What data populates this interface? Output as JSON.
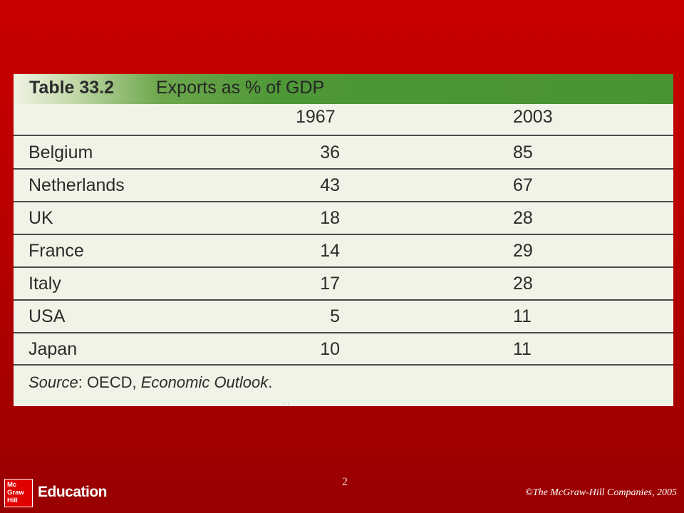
{
  "table": {
    "number": "Table 33.2",
    "title": "Exports as % of GDP",
    "columns": [
      "1967",
      "2003"
    ],
    "rows": [
      {
        "country": "Belgium",
        "y1967": "36",
        "y2003": "85"
      },
      {
        "country": "Netherlands",
        "y1967": "43",
        "y2003": "67"
      },
      {
        "country": "UK",
        "y1967": "18",
        "y2003": "28"
      },
      {
        "country": "France",
        "y1967": "14",
        "y2003": "29"
      },
      {
        "country": "Italy",
        "y1967": "17",
        "y2003": "28"
      },
      {
        "country": "USA",
        "y1967": "5",
        "y2003": "11"
      },
      {
        "country": "Japan",
        "y1967": "10",
        "y2003": "11"
      }
    ],
    "source_label": "Source",
    "source_org": ": OECD, ",
    "source_pub": "Economic Outlook",
    "source_end": ".",
    "stamp": "ၦ"
  },
  "footer": {
    "page_number": "2",
    "logo_lines": [
      "Mc",
      "Graw",
      "Hill"
    ],
    "education": "Education",
    "copyright": "©The McGraw-Hill Companies, 2005"
  },
  "colors": {
    "background_red": "#c80000",
    "title_bar_green": "#4e9736",
    "table_paper": "#f1f3e6"
  }
}
